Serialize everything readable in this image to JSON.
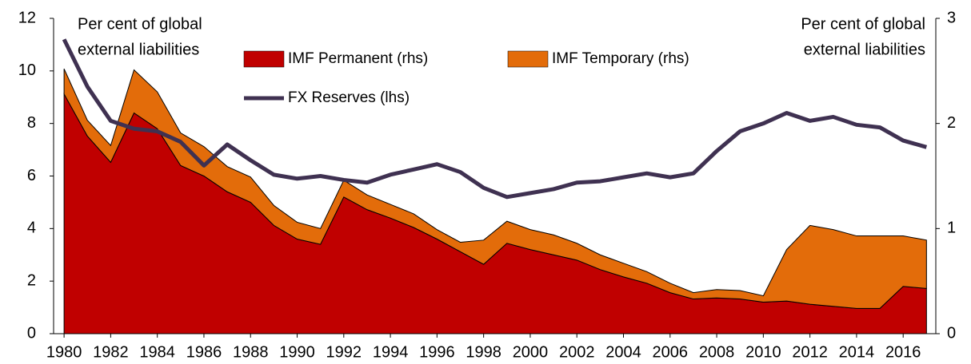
{
  "chart_data": {
    "type": "stacked_area_line",
    "left_axis_label": [
      "Per cent  of global",
      "external liabilities"
    ],
    "right_axis_label": [
      "Per cent  of global",
      "external liabilities"
    ],
    "x": [
      1980,
      1981,
      1982,
      1983,
      1984,
      1985,
      1986,
      1987,
      1988,
      1989,
      1990,
      1991,
      1992,
      1993,
      1994,
      1995,
      1996,
      1997,
      1998,
      1999,
      2000,
      2001,
      2002,
      2003,
      2004,
      2005,
      2006,
      2007,
      2008,
      2009,
      2010,
      2011,
      2012,
      2013,
      2014,
      2015,
      2016,
      2017
    ],
    "xlim": [
      1979.55,
      2017.4
    ],
    "xticks": [
      1980,
      1982,
      1984,
      1986,
      1988,
      1990,
      1992,
      1994,
      1996,
      1998,
      2000,
      2002,
      2004,
      2006,
      2008,
      2010,
      2012,
      2014,
      2016
    ],
    "ylim": [
      0,
      12
    ],
    "yticks": [
      0,
      2,
      4,
      6,
      8,
      10,
      12
    ],
    "y2lim": [
      0,
      3
    ],
    "y2ticks": [
      0,
      1,
      2,
      3
    ],
    "series": [
      {
        "name": "IMF Permanent (rhs)",
        "color": "#c00000",
        "axis": "y2",
        "kind": "area",
        "values": [
          2.28,
          1.88,
          1.63,
          2.1,
          1.95,
          1.6,
          1.5,
          1.35,
          1.25,
          1.03,
          0.9,
          0.85,
          1.3,
          1.18,
          1.1,
          1.01,
          0.9,
          0.78,
          0.66,
          0.86,
          0.8,
          0.75,
          0.7,
          0.61,
          0.54,
          0.48,
          0.39,
          0.33,
          0.34,
          0.33,
          0.3,
          0.31,
          0.28,
          0.26,
          0.24,
          0.24,
          0.45,
          0.43
        ]
      },
      {
        "name": "IMF Temporary (rhs)",
        "color": "#e36c0a",
        "axis": "y2",
        "kind": "area",
        "values": [
          0.24,
          0.15,
          0.16,
          0.41,
          0.35,
          0.31,
          0.28,
          0.24,
          0.24,
          0.19,
          0.16,
          0.15,
          0.16,
          0.14,
          0.13,
          0.13,
          0.09,
          0.09,
          0.23,
          0.21,
          0.19,
          0.19,
          0.16,
          0.14,
          0.13,
          0.11,
          0.09,
          0.06,
          0.08,
          0.08,
          0.06,
          0.49,
          0.75,
          0.73,
          0.69,
          0.69,
          0.48,
          0.46
        ]
      },
      {
        "name": "FX Reserves (lhs)",
        "color": "#3f3151",
        "kind": "line",
        "values": [
          11.2,
          9.4,
          8.1,
          7.8,
          7.7,
          7.3,
          6.4,
          7.2,
          6.6,
          6.05,
          5.9,
          6.0,
          5.85,
          5.75,
          6.05,
          6.25,
          6.45,
          6.15,
          5.55,
          5.2,
          5.35,
          5.5,
          5.75,
          5.8,
          5.95,
          6.1,
          5.95,
          6.1,
          6.95,
          7.7,
          8.0,
          8.4,
          8.1,
          8.25,
          7.95,
          7.85,
          7.35,
          7.1
        ]
      }
    ]
  }
}
